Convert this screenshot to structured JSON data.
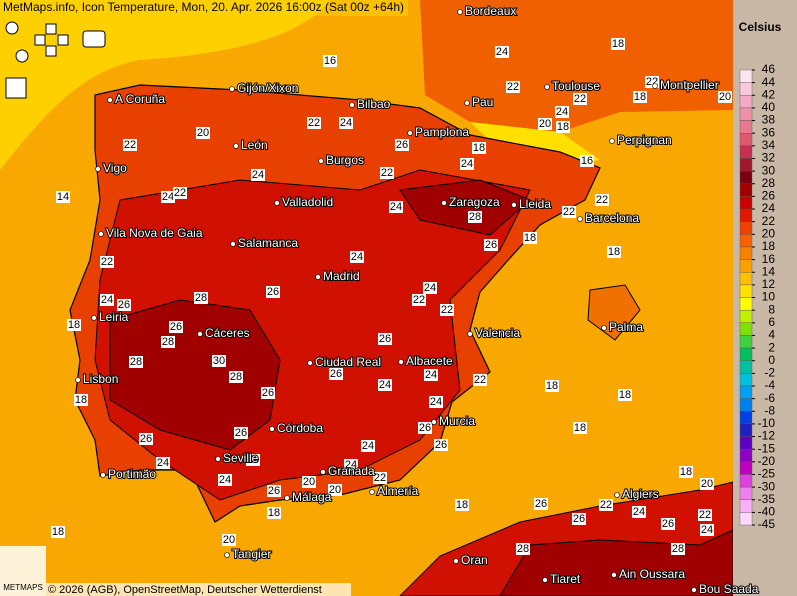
{
  "header": {
    "title": "MetMaps.info, Icon Temperature, Mon, 20. Apr. 2026 16:00z (Sat 00z +64h)"
  },
  "map": {
    "cities": [
      "Bordeaux",
      "Toulouse",
      "Montpellier",
      "Pau",
      "A Coruña",
      "Gijón/Xixon",
      "Bilbao",
      "Pamplona",
      "Perpignan",
      "León",
      "Burgos",
      "Vigo",
      "Zaragoza",
      "Lleida",
      "Barcelona",
      "Valladolid",
      "Vila Nova de Gaia",
      "Salamanca",
      "Madrid",
      "Leiria",
      "Palma",
      "Cáceres",
      "Valencia",
      "Ciudad Real",
      "Albacete",
      "Lisbon",
      "Córdoba",
      "Murcia",
      "Seville",
      "Granada",
      "Almería",
      "Portimão",
      "Málaga",
      "Algiers",
      "Tangier",
      "Oran",
      "Tiaret",
      "Ain Oussara",
      "Bou Saada"
    ],
    "contour_labels": [
      16,
      24,
      18,
      22,
      22,
      24,
      18,
      22,
      20,
      20,
      22,
      24,
      26,
      18,
      24,
      22,
      20,
      18,
      16,
      22,
      24,
      24,
      22,
      14,
      24,
      28,
      18,
      22,
      22,
      26,
      22,
      24,
      18,
      26,
      24,
      22,
      22,
      24,
      26,
      28,
      26,
      18,
      28,
      30,
      28,
      26,
      26,
      28,
      24,
      22,
      24,
      18,
      18,
      18,
      26,
      24,
      26,
      26,
      26,
      24,
      18,
      26,
      20,
      24,
      24,
      24,
      22,
      20,
      18,
      20,
      20,
      26,
      18,
      18,
      18,
      20,
      26,
      22,
      26,
      24,
      26,
      22,
      24,
      28,
      28
    ]
  },
  "legend": {
    "title": "Celsius",
    "ticks": [
      46,
      44,
      42,
      40,
      38,
      36,
      34,
      32,
      30,
      28,
      26,
      24,
      22,
      20,
      18,
      16,
      14,
      12,
      10,
      8,
      6,
      4,
      2,
      0,
      -2,
      -4,
      -6,
      -8,
      -10,
      -12,
      -15,
      -20,
      -25,
      -30,
      -35,
      -40,
      -45
    ],
    "colors": [
      "#fce4f0",
      "#f8c8dc",
      "#f4aac4",
      "#f090a8",
      "#e87890",
      "#e05870",
      "#c83050",
      "#a01830",
      "#7a0010",
      "#a00000",
      "#c80000",
      "#e01800",
      "#f04000",
      "#f86000",
      "#fa8000",
      "#fca000",
      "#fec000",
      "#ffe000",
      "#ffff00",
      "#c0f000",
      "#80e000",
      "#40d040",
      "#00c060",
      "#00c0a0",
      "#00c0e0",
      "#00a0f0",
      "#0080f0",
      "#0040e0",
      "#2020c0",
      "#6000c0",
      "#9000c0",
      "#c000c0",
      "#e040e0",
      "#f080f0",
      "#f8b0f8",
      "#fcd8fc"
    ]
  },
  "footer": {
    "copyright": "© 2026 (AGB), OpenStreetMap, Deutscher Wetterdienst",
    "logo": "METMAPS"
  }
}
